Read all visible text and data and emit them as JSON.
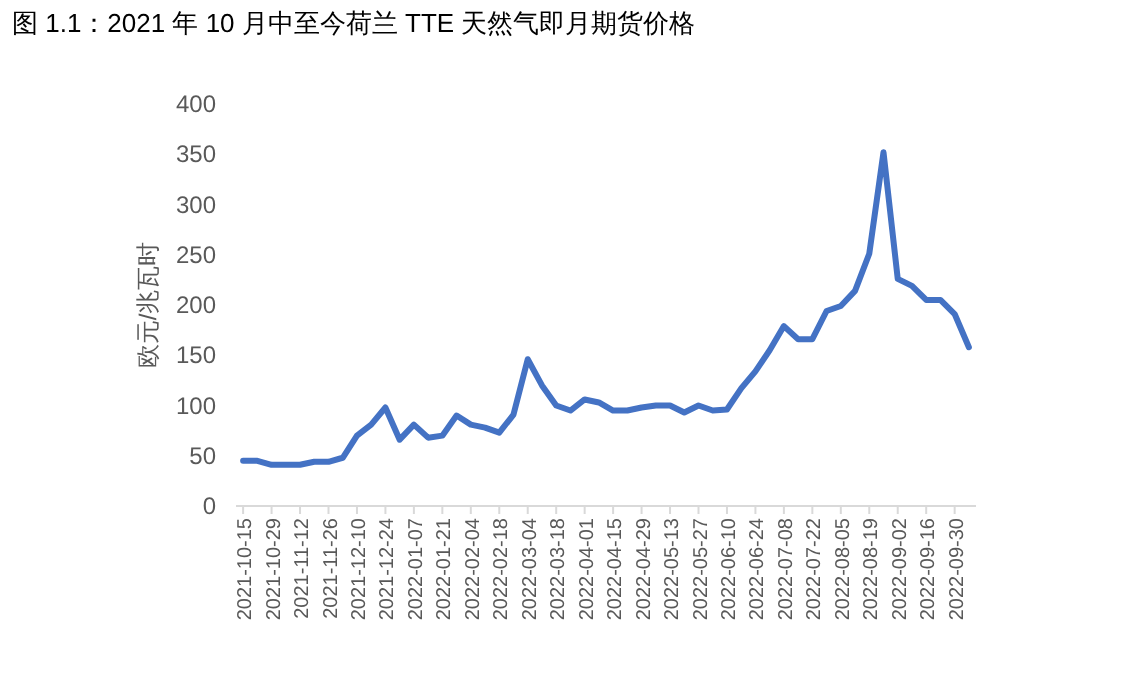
{
  "chart_data": {
    "type": "line",
    "title": "图 1.1：2021 年 10 月中至今荷兰 TTE 天然气即月期货价格",
    "ylabel": "欧元/兆瓦时",
    "categories": [
      "2021-10-15",
      null,
      "2021-10-29",
      null,
      "2021-11-12",
      null,
      "2021-11-26",
      null,
      "2021-12-10",
      null,
      "2021-12-24",
      null,
      "2022-01-07",
      null,
      "2022-01-21",
      null,
      "2022-02-04",
      null,
      "2022-02-18",
      null,
      "2022-03-04",
      null,
      "2022-03-18",
      null,
      "2022-04-01",
      null,
      "2022-04-15",
      null,
      "2022-04-29",
      null,
      "2022-05-13",
      null,
      "2022-05-27",
      null,
      "2022-06-10",
      null,
      "2022-06-24",
      null,
      "2022-07-08",
      null,
      "2022-07-22",
      null,
      "2022-08-05",
      null,
      "2022-08-19",
      null,
      "2022-09-02",
      null,
      "2022-09-16",
      null,
      "2022-09-30",
      null
    ],
    "series": [
      {
        "color": "#4472c4",
        "values": [
          45,
          45,
          41,
          41,
          41,
          44,
          44,
          48,
          70,
          81,
          98,
          66,
          81,
          68,
          70,
          90,
          81,
          78,
          73,
          91,
          146,
          120,
          100,
          95,
          106,
          103,
          95,
          95,
          98,
          100,
          100,
          93,
          100,
          95,
          96,
          117,
          134,
          155,
          179,
          166,
          166,
          194,
          199,
          214,
          251,
          352,
          226,
          219,
          205,
          205,
          191,
          158
        ]
      }
    ],
    "ylim": [
      0,
      400
    ],
    "yticks": [
      0,
      50,
      100,
      150,
      200,
      250,
      300,
      350,
      400
    ]
  }
}
